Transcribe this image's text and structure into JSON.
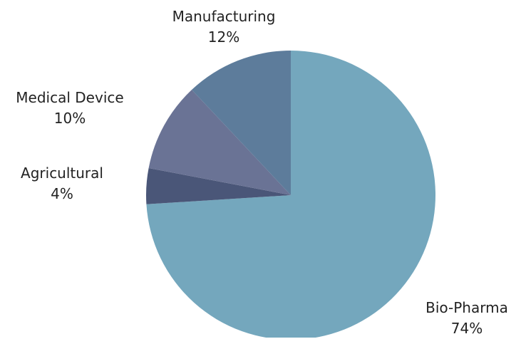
{
  "chart_data": {
    "type": "pie",
    "title": "",
    "start_angle_deg": 0,
    "direction": "clockwise",
    "slices": [
      {
        "name": "Bio-Pharma",
        "value": 74,
        "label": "74%",
        "color": "#74a7bd"
      },
      {
        "name": "Agricultural",
        "value": 4,
        "label": "4%",
        "color": "#4a5678"
      },
      {
        "name": "Medical Device",
        "value": 10,
        "label": "10%",
        "color": "#6a7395"
      },
      {
        "name": "Manufacturing",
        "value": 12,
        "label": "12%",
        "color": "#5d7c9b"
      }
    ],
    "legend": "none",
    "data_labels": "outside"
  }
}
